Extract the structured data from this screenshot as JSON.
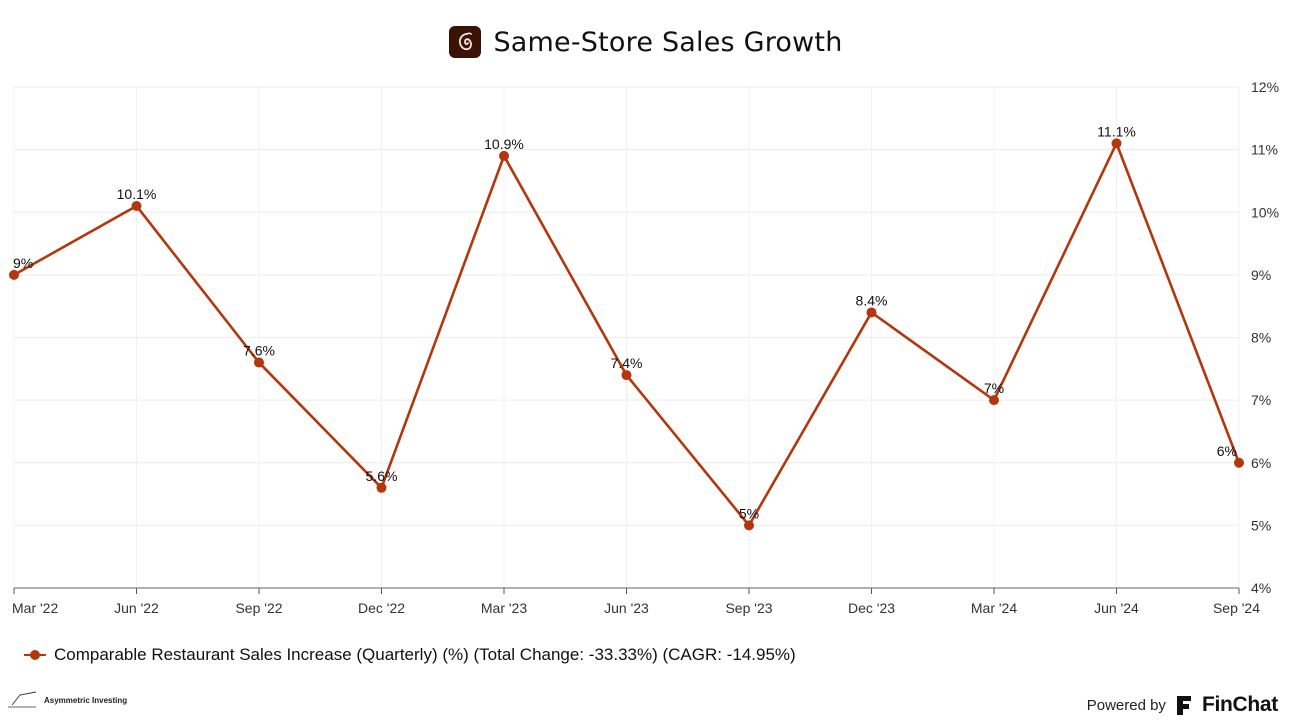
{
  "header": {
    "title": "Same-Store Sales Growth"
  },
  "chart_data": {
    "type": "line",
    "categories": [
      "Mar '22",
      "Jun '22",
      "Sep '22",
      "Dec '22",
      "Mar '23",
      "Jun '23",
      "Sep '23",
      "Dec '23",
      "Mar '24",
      "Jun '24",
      "Sep '24"
    ],
    "series": [
      {
        "name": "Comparable Restaurant Sales Increase (Quarterly) (%) (Total Change: -33.33%) (CAGR: -14.95%)",
        "values": [
          9,
          10.1,
          7.6,
          5.6,
          10.9,
          7.4,
          5,
          8.4,
          7,
          11.1,
          6
        ],
        "labels": [
          "9%",
          "10.1%",
          "7.6%",
          "5.6%",
          "10.9%",
          "7.4%",
          "5%",
          "8.4%",
          "7%",
          "11.1%",
          "6%"
        ],
        "color": "#b3360c"
      }
    ],
    "y_ticks": [
      4,
      5,
      6,
      7,
      8,
      9,
      10,
      11,
      12
    ],
    "y_tick_labels": [
      "4%",
      "5%",
      "6%",
      "7%",
      "8%",
      "9%",
      "10%",
      "11%",
      "12%"
    ],
    "ylim": [
      4,
      12
    ],
    "y_axis_side": "right",
    "grid": true,
    "legend_position": "bottom-left"
  },
  "legend": {
    "label": "Comparable Restaurant Sales Increase (Quarterly) (%) (Total Change: -33.33%) (CAGR: -14.95%)"
  },
  "footer": {
    "watermark": "Asymmetric Investing",
    "powered_by": "Powered by",
    "brand": "FinChat"
  },
  "icons": {
    "title_logo": "chili-pepper-logo-icon",
    "watermark_logo": "asymmetric-investing-logo-icon",
    "brand_logo": "finchat-logo-icon"
  }
}
